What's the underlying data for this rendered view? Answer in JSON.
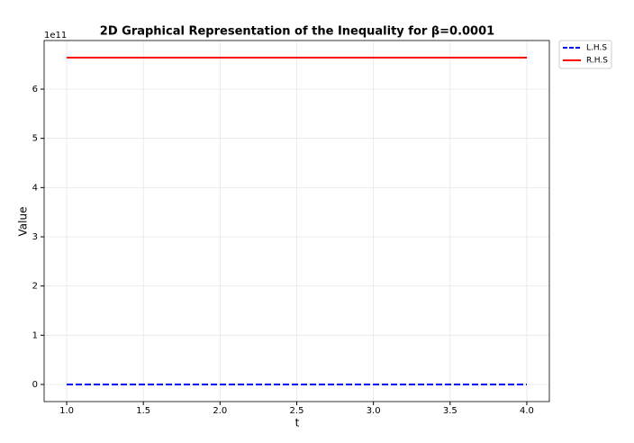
{
  "chart_data": {
    "type": "line",
    "title": "2D Graphical Representation of the Inequality for β=0.0001",
    "x_label": "t",
    "y_label": "Value",
    "y_offset_label": "1e11",
    "x": [
      1.0,
      4.0
    ],
    "series": [
      {
        "name": "L.H.S",
        "color": "#0000ff",
        "dashed": true,
        "values": [
          0,
          0
        ]
      },
      {
        "name": "R.H.S",
        "color": "#ff0000",
        "dashed": false,
        "values": [
          6.64,
          6.64
        ]
      }
    ],
    "xlim": [
      0.853,
      4.147
    ],
    "xticks": [
      {
        "value": 1.0,
        "label": "1.0"
      },
      {
        "value": 1.5,
        "label": "1.5"
      },
      {
        "value": 2.0,
        "label": "2.0"
      },
      {
        "value": 2.5,
        "label": "2.5"
      },
      {
        "value": 3.0,
        "label": "3.0"
      },
      {
        "value": 3.5,
        "label": "3.5"
      },
      {
        "value": 4.0,
        "label": "4.0"
      }
    ],
    "ylim": [
      -0.348,
      6.988
    ],
    "yticks": [
      0,
      1,
      2,
      3,
      4,
      5,
      6
    ],
    "grid": true,
    "legend": "outside upper right"
  }
}
